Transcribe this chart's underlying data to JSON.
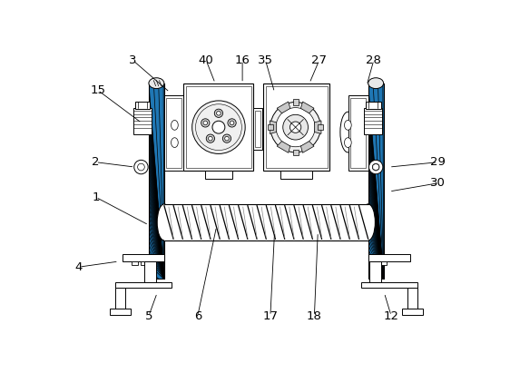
{
  "background_color": "#ffffff",
  "line_color": "#000000",
  "fig_width": 5.73,
  "fig_height": 4.11,
  "dpi": 100,
  "labels": [
    [
      "3",
      95,
      22,
      148,
      68
    ],
    [
      "40",
      200,
      22,
      213,
      55
    ],
    [
      "16",
      252,
      22,
      252,
      55
    ],
    [
      "35",
      285,
      22,
      298,
      68
    ],
    [
      "27",
      362,
      22,
      348,
      55
    ],
    [
      "28",
      440,
      22,
      430,
      58
    ],
    [
      "15",
      45,
      65,
      108,
      112
    ],
    [
      "2",
      42,
      168,
      98,
      175
    ],
    [
      "1",
      42,
      218,
      118,
      258
    ],
    [
      "29",
      532,
      168,
      462,
      175
    ],
    [
      "30",
      532,
      198,
      462,
      210
    ],
    [
      "4",
      18,
      318,
      75,
      310
    ],
    [
      "5",
      118,
      388,
      130,
      355
    ],
    [
      "6",
      188,
      388,
      215,
      260
    ],
    [
      "17",
      292,
      388,
      298,
      268
    ],
    [
      "18",
      355,
      388,
      360,
      268
    ],
    [
      "12",
      465,
      388,
      455,
      355
    ]
  ]
}
